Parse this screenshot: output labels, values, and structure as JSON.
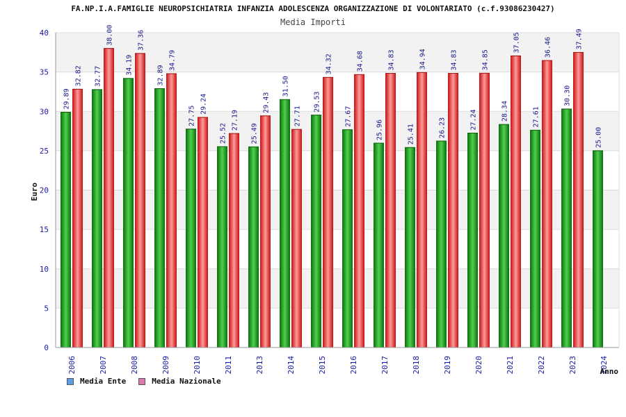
{
  "chart_data": {
    "type": "bar",
    "title": "FA.NP.I.A.FAMIGLIE NEUROPSICHIATRIA INFANZIA ADOLESCENZA ORGANIZZAZIONE DI VOLONTARIATO (c.f.93086230427)",
    "subtitle": "Media Importi",
    "xlabel": "Anno",
    "ylabel": "Euro",
    "ylim": [
      0,
      40
    ],
    "yticks": [
      "0",
      "5",
      "10",
      "15",
      "20",
      "25",
      "30",
      "35",
      "40"
    ],
    "grid": true,
    "legend_position": "bottom-left",
    "categories": [
      "2006",
      "2007",
      "2008",
      "2009",
      "2010",
      "2011",
      "2013",
      "2014",
      "2015",
      "2016",
      "2017",
      "2018",
      "2019",
      "2020",
      "2021",
      "2022",
      "2023",
      "2024"
    ],
    "series": [
      {
        "name": "Media Ente",
        "color": "#1a9e1a",
        "legend_color": "#5a9ee8",
        "values": [
          29.89,
          32.77,
          34.19,
          32.89,
          27.75,
          25.52,
          25.49,
          31.5,
          29.53,
          27.67,
          25.96,
          25.41,
          26.23,
          27.24,
          28.34,
          27.61,
          30.3,
          25.0
        ],
        "labels": [
          "29.89",
          "32.77",
          "34.19",
          "32.89",
          "27.75",
          "25.52",
          "25.49",
          "31.50",
          "29.53",
          "27.67",
          "25.96",
          "25.41",
          "26.23",
          "27.24",
          "28.34",
          "27.61",
          "30.30",
          "25.00"
        ]
      },
      {
        "name": "Media Nazionale",
        "color": "#e31a1a",
        "legend_color": "#d97ab0",
        "values": [
          32.82,
          38.0,
          37.36,
          34.79,
          29.24,
          27.19,
          29.43,
          27.71,
          34.32,
          34.68,
          34.83,
          34.94,
          34.83,
          34.85,
          37.05,
          36.46,
          37.49,
          null
        ],
        "labels": [
          "32.82",
          "38.00",
          "37.36",
          "34.79",
          "29.24",
          "27.19",
          "29.43",
          "27.71",
          "34.32",
          "34.68",
          "34.83",
          "34.94",
          "34.83",
          "34.85",
          "37.05",
          "36.46",
          "37.49",
          ""
        ]
      }
    ]
  }
}
